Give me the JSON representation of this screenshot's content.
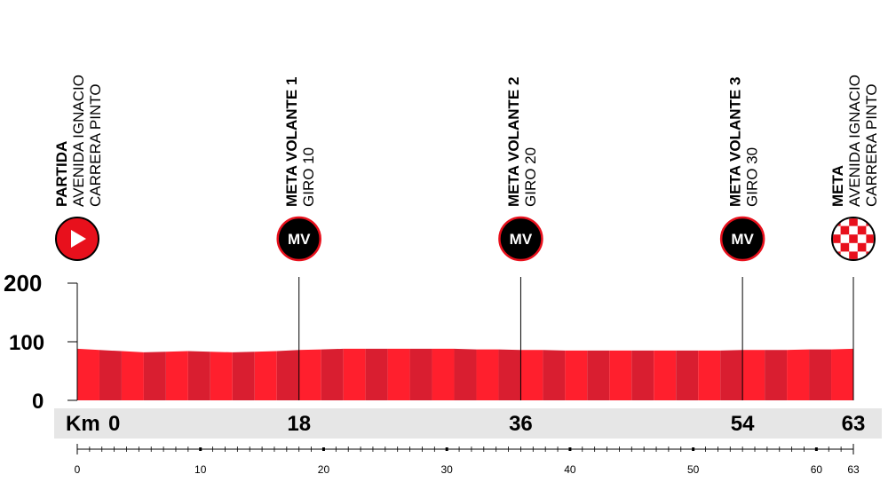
{
  "chart_data": {
    "type": "area",
    "xlabel": "Km",
    "ylim": [
      0,
      200
    ],
    "xlim": [
      0,
      63
    ],
    "y_ticks": [
      "200",
      "100",
      "0"
    ],
    "y_tick_values": [
      200,
      100,
      0
    ],
    "km_prefix": "Km",
    "km_marks": [
      {
        "km": 0,
        "label": "0"
      },
      {
        "km": 18,
        "label": "18"
      },
      {
        "km": 36,
        "label": "36"
      },
      {
        "km": 54,
        "label": "54"
      },
      {
        "km": 63,
        "label": "63"
      }
    ],
    "ruler_ticks": [
      {
        "km": 0,
        "label": "0"
      },
      {
        "km": 10,
        "label": "10"
      },
      {
        "km": 20,
        "label": "20"
      },
      {
        "km": 30,
        "label": "30"
      },
      {
        "km": 40,
        "label": "40"
      },
      {
        "km": 50,
        "label": "50"
      },
      {
        "km": 60,
        "label": "60"
      },
      {
        "km": 63,
        "label": "63"
      }
    ],
    "profile": {
      "x": [
        0,
        1.8,
        3.6,
        5.4,
        7.2,
        9,
        10.8,
        12.6,
        14.4,
        16.2,
        18,
        19.8,
        21.6,
        23.4,
        25.2,
        27,
        28.8,
        30.6,
        32.4,
        34.2,
        36,
        37.8,
        39.6,
        41.4,
        43.2,
        45,
        46.8,
        48.6,
        50.4,
        52.2,
        54,
        55.8,
        57.6,
        59.4,
        61.2,
        63
      ],
      "y": [
        88,
        86,
        84,
        82,
        83,
        84,
        83,
        82,
        83,
        84,
        86,
        87,
        88,
        88,
        88,
        88,
        88,
        88,
        87,
        87,
        86,
        86,
        85,
        85,
        85,
        85,
        85,
        85,
        85,
        85,
        86,
        86,
        86,
        87,
        87,
        88
      ]
    },
    "colors": {
      "band_a": "#ff1f2d",
      "band_b": "#d91e30",
      "axis": "#000000",
      "km_band": "#e6e6e6",
      "marker_black": "#000000",
      "marker_red": "#e8101c",
      "marker_ring": "#e8101c"
    },
    "waypoints": [
      {
        "km": 0,
        "title": "PARTIDA",
        "lines": [
          "AVENIDA IGNACIO",
          "CARRERA PINTO"
        ],
        "icon": "start-play-icon",
        "badge": ""
      },
      {
        "km": 18,
        "title": "META VOLANTE 1",
        "lines": [
          "GIRO 10"
        ],
        "icon": "meta-volante-icon",
        "badge": "MV"
      },
      {
        "km": 36,
        "title": "META VOLANTE 2",
        "lines": [
          "GIRO 20"
        ],
        "icon": "meta-volante-icon",
        "badge": "MV"
      },
      {
        "km": 54,
        "title": "META VOLANTE 3",
        "lines": [
          "GIRO 30"
        ],
        "icon": "meta-volante-icon",
        "badge": "MV"
      },
      {
        "km": 63,
        "title": "META",
        "lines": [
          "AVENIDA IGNACIO",
          "CARRERA PINTO"
        ],
        "icon": "finish-checkered-icon",
        "badge": ""
      }
    ]
  }
}
